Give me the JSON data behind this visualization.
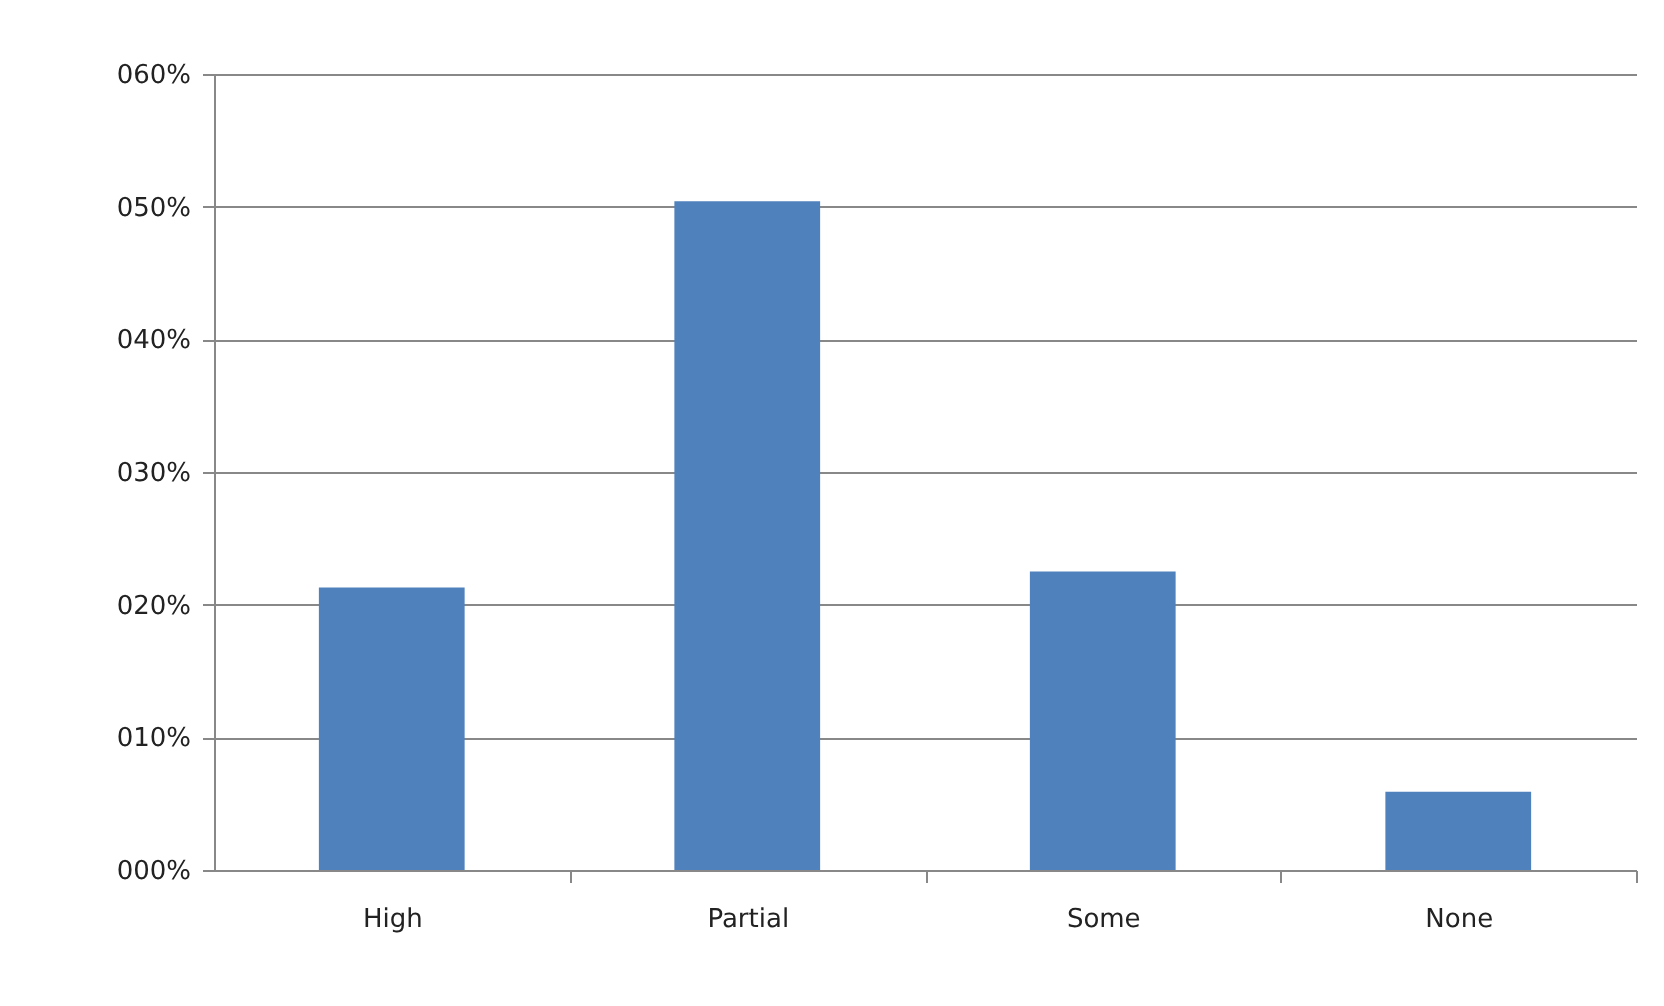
{
  "chart_data": {
    "type": "bar",
    "categories": [
      "High",
      "Partial",
      "Some",
      "None"
    ],
    "values": [
      21.3,
      50.4,
      22.5,
      5.9
    ],
    "color": "#4f81bd",
    "ylim": [
      0,
      60
    ],
    "yticks": [
      {
        "value": 0,
        "label": "000%"
      },
      {
        "value": 10,
        "label": "010%"
      },
      {
        "value": 20,
        "label": "020%"
      },
      {
        "value": 30,
        "label": "030%"
      },
      {
        "value": 40,
        "label": "040%"
      },
      {
        "value": 50,
        "label": "050%"
      },
      {
        "value": 60,
        "label": "060%"
      }
    ],
    "grid": "y"
  }
}
